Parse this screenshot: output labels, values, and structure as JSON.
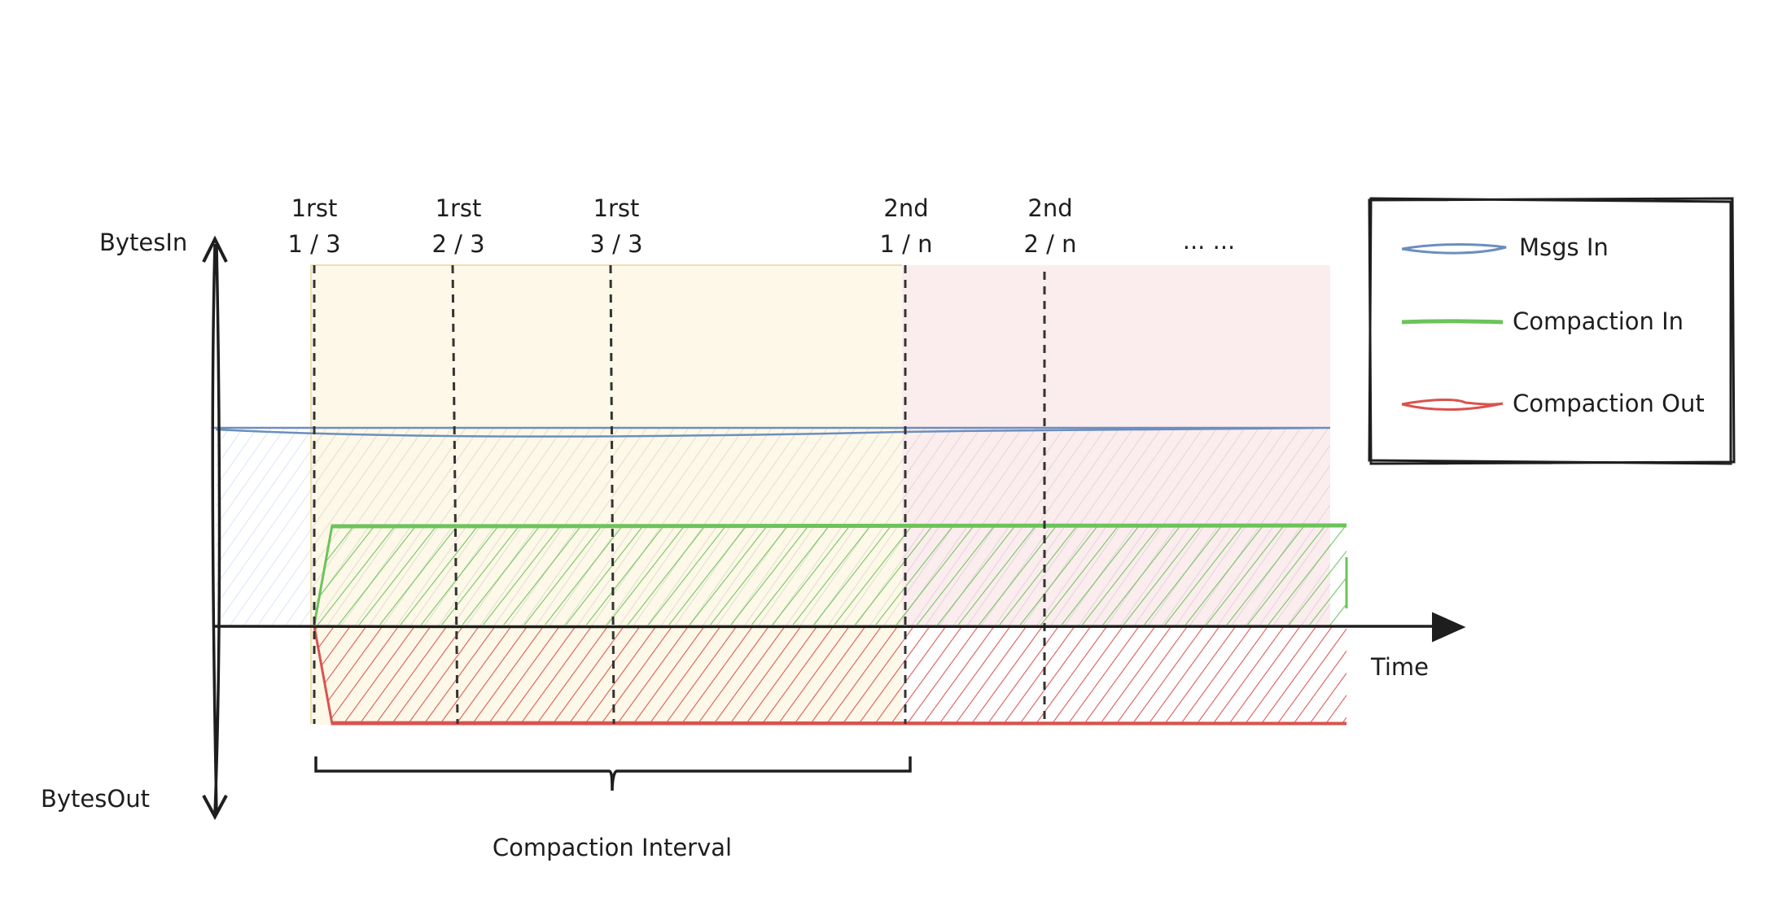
{
  "axes": {
    "y_top_label": "BytesIn",
    "y_bottom_label": "BytesOut",
    "x_label": "Time"
  },
  "milestones": [
    {
      "id": "m1",
      "line1": "1rst",
      "line2": "1 / 3"
    },
    {
      "id": "m2",
      "line1": "1rst",
      "line2": "2 / 3"
    },
    {
      "id": "m3",
      "line1": "1rst",
      "line2": "3 / 3"
    },
    {
      "id": "m4",
      "line1": "2nd",
      "line2": "1 / n"
    },
    {
      "id": "m5",
      "line1": "2nd",
      "line2": "2 / n"
    },
    {
      "id": "m6",
      "line1": "",
      "line2": "... ..."
    }
  ],
  "brace_label": "Compaction Interval",
  "legend": {
    "items": [
      {
        "label": "Msgs In",
        "color": "#6c8ebf"
      },
      {
        "label": "Compaction In",
        "color": "#6cc35a"
      },
      {
        "label": "Compaction Out",
        "color": "#d9534f"
      }
    ]
  },
  "colors": {
    "interval1_fill": "#fdf8e8",
    "interval2_fill": "#fbeded",
    "msgs_in": "#6c8ebf",
    "compaction_in": "#6cc35a",
    "compaction_out": "#d9534f",
    "ink": "#1e1e1e"
  }
}
